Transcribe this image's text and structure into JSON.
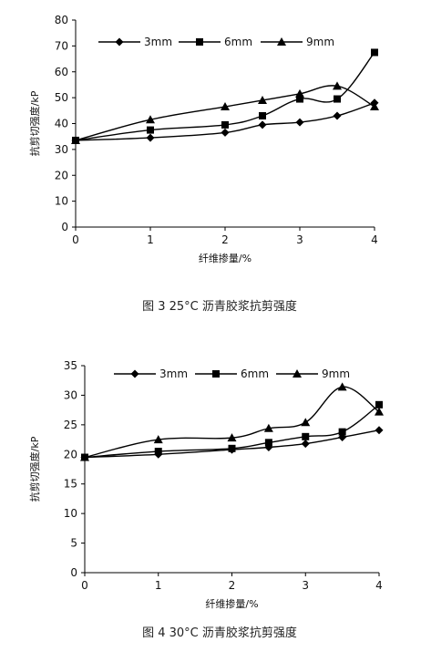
{
  "chart_data": [
    {
      "type": "line",
      "caption": "图 3  25°C 沥青胶浆抗剪强度",
      "xlabel": "纤维掺量/%",
      "ylabel": "抗剪切强度/kP",
      "xlim": [
        0,
        4
      ],
      "ylim": [
        0,
        80
      ],
      "xticks": [
        0,
        1,
        2,
        3,
        4
      ],
      "yticks": [
        0,
        10,
        20,
        30,
        40,
        50,
        60,
        70,
        80
      ],
      "legend_position": "top",
      "grid": false,
      "series": [
        {
          "name": "3mm",
          "marker": "diamond",
          "x": [
            0,
            1,
            2,
            2.5,
            3,
            3.5,
            4
          ],
          "values": [
            33.5,
            34.5,
            36.5,
            39.5,
            40.5,
            43,
            48
          ]
        },
        {
          "name": "6mm",
          "marker": "square",
          "x": [
            0,
            1,
            2,
            2.5,
            3,
            3.5,
            4
          ],
          "values": [
            33.5,
            37.5,
            39.5,
            43,
            49.5,
            49.5,
            67.5
          ]
        },
        {
          "name": "9mm",
          "marker": "triangle",
          "x": [
            0,
            1,
            2,
            2.5,
            3,
            3.5,
            4
          ],
          "values": [
            33.5,
            41.5,
            46.5,
            49,
            51.5,
            54.5,
            46.5
          ]
        }
      ]
    },
    {
      "type": "line",
      "caption": "图 4  30°C 沥青胶浆抗剪强度",
      "xlabel": "纤维掺量/%",
      "ylabel": "抗剪切强度/kP",
      "xlim": [
        0,
        4
      ],
      "ylim": [
        0,
        35
      ],
      "xticks": [
        0,
        1,
        2,
        3,
        4
      ],
      "yticks": [
        0,
        5,
        10,
        15,
        20,
        25,
        30,
        35
      ],
      "legend_position": "top",
      "grid": false,
      "series": [
        {
          "name": "3mm",
          "marker": "diamond",
          "x": [
            0,
            1,
            2,
            2.5,
            3,
            3.5,
            4
          ],
          "values": [
            19.5,
            20.0,
            20.8,
            21.2,
            21.8,
            22.9,
            24.1
          ]
        },
        {
          "name": "6mm",
          "marker": "square",
          "x": [
            0,
            1,
            2,
            2.5,
            3,
            3.5,
            4
          ],
          "values": [
            19.5,
            20.5,
            21.0,
            22.0,
            23.0,
            23.8,
            28.4
          ]
        },
        {
          "name": "9mm",
          "marker": "triangle",
          "x": [
            0,
            1,
            2,
            2.5,
            3,
            3.5,
            4
          ],
          "values": [
            19.5,
            22.5,
            22.8,
            24.4,
            25.4,
            31.4,
            27.2
          ]
        }
      ]
    }
  ]
}
